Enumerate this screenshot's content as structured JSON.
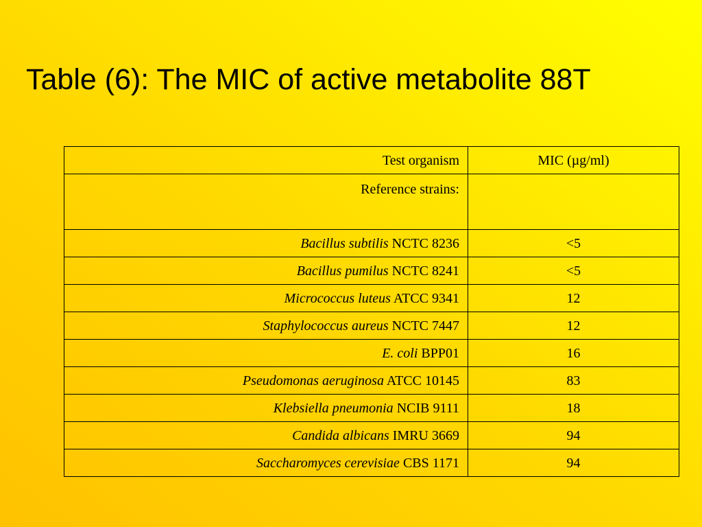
{
  "title": "Table (6): The MIC of active metabolite 88T",
  "table": {
    "headers": {
      "organism": "Test organism",
      "mic": "MIC (µg/ml)"
    },
    "section_label": "Reference strains:",
    "rows": [
      {
        "species": "Bacillus subtilis",
        "strain": "NCTC 8236",
        "mic": "<5"
      },
      {
        "species": "Bacillus pumilus",
        "strain": "NCTC 8241",
        "mic": "<5"
      },
      {
        "species": "Micrococcus luteus",
        "strain": "ATCC 9341",
        "mic": "12"
      },
      {
        "species": "Staphylococcus aureus",
        "strain": "NCTC 7447",
        "mic": "12"
      },
      {
        "species": "E. coli",
        "strain": "BPP01",
        "mic": "16"
      },
      {
        "species": "Pseudomonas aeruginosa",
        "strain": "ATCC 10145",
        "mic": "83"
      },
      {
        "species": "Klebsiella pneumonia",
        "strain": "NCIB 9111",
        "mic": "18"
      },
      {
        "species": "Candida albicans",
        "strain": "IMRU 3669",
        "mic": "94"
      },
      {
        "species": "Saccharomyces cerevisiae",
        "strain": "CBS 1171",
        "mic": "94"
      }
    ]
  },
  "colors": {
    "background_top_right": "#ffff00",
    "background_bottom_left": "#ffc200",
    "text": "#000000"
  }
}
